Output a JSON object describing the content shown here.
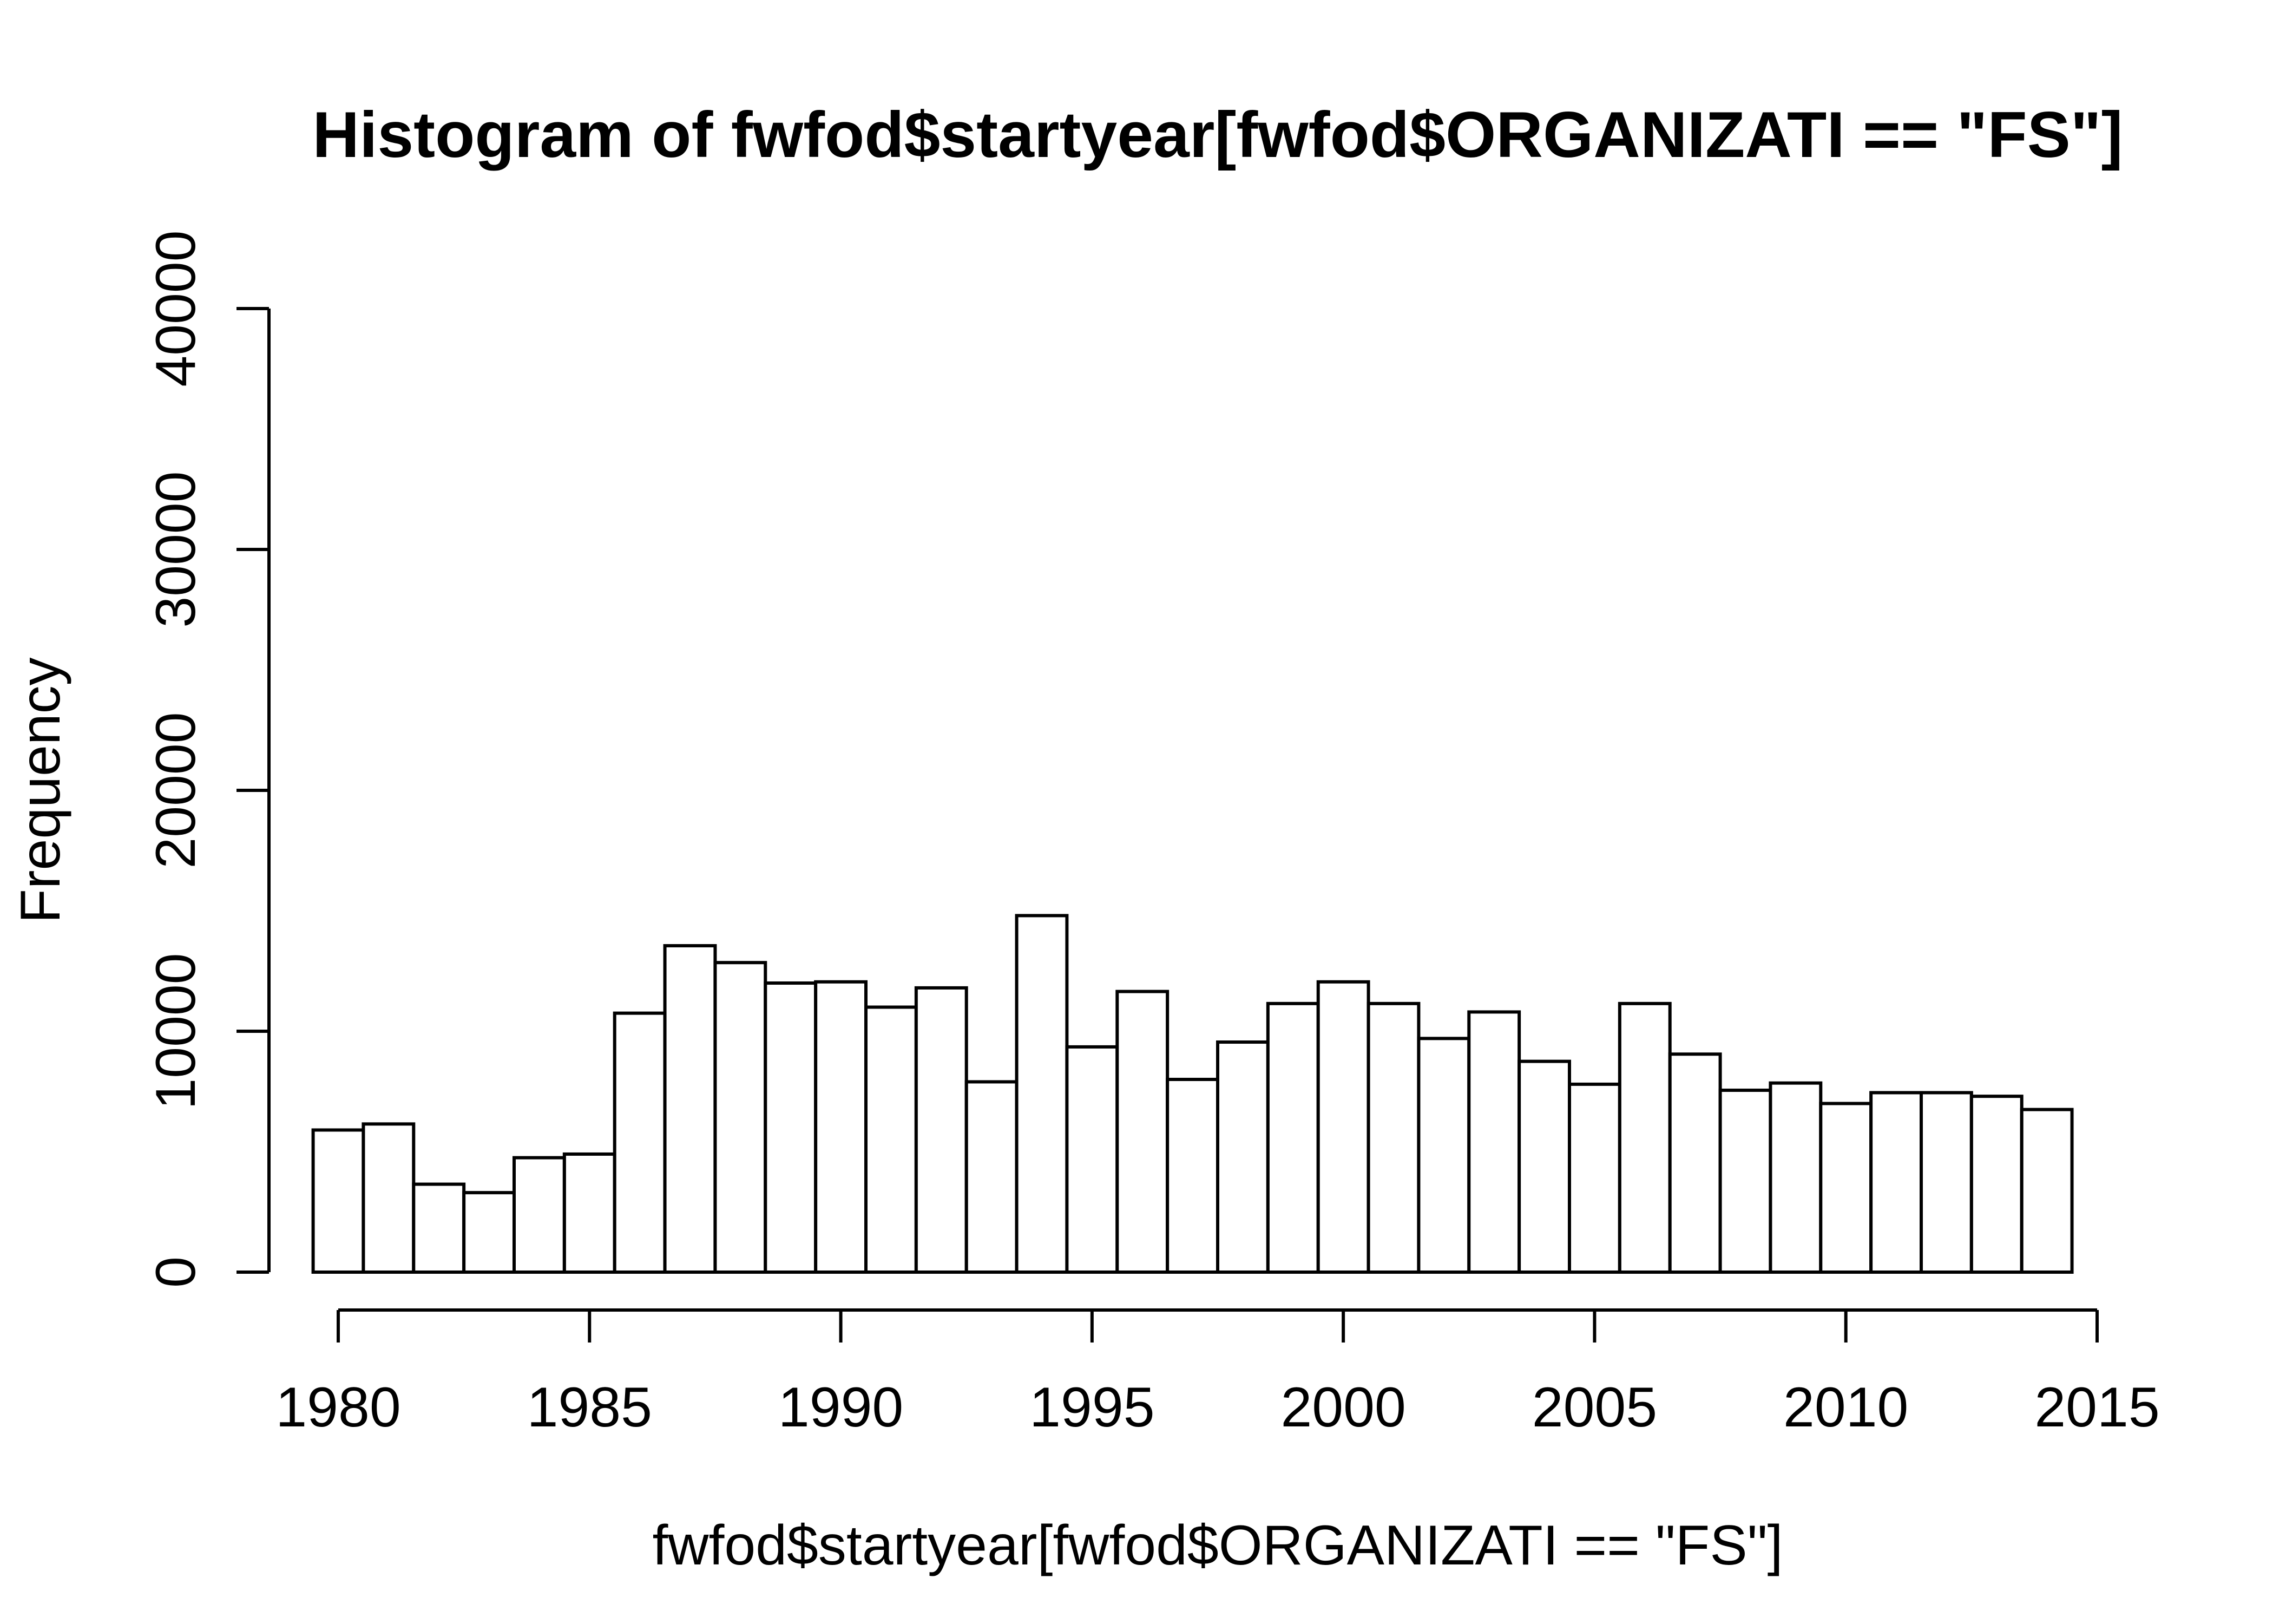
{
  "chart_data": {
    "type": "bar",
    "title": "Histogram of fwfod$startyear[fwfod$ORGANIZATI == \"FS\"]",
    "xlabel": "fwfod$startyear[fwfod$ORGANIZATI == \"FS\"]",
    "ylabel": "Frequency",
    "xlim": [
      1980,
      2015
    ],
    "ylim": [
      0,
      40000
    ],
    "x_ticks": [
      1980,
      1985,
      1990,
      1995,
      2000,
      2005,
      2010,
      2015
    ],
    "y_ticks": [
      0,
      10000,
      20000,
      30000,
      40000
    ],
    "bins_start": 1979.5,
    "bin_width": 1,
    "values": [
      5900,
      6150,
      3650,
      3300,
      4750,
      4900,
      10750,
      13550,
      12850,
      12000,
      12050,
      11000,
      11800,
      7900,
      14800,
      9350,
      11650,
      8000,
      9550,
      11150,
      12050,
      11150,
      9700,
      10800,
      8750,
      7800,
      11150,
      9050,
      7550,
      7850,
      7000,
      7450,
      7450,
      7300,
      6750
    ],
    "grid": false,
    "colors": {
      "bar_fill": "#ffffff",
      "bar_stroke": "#000000",
      "background": "#ffffff"
    }
  }
}
